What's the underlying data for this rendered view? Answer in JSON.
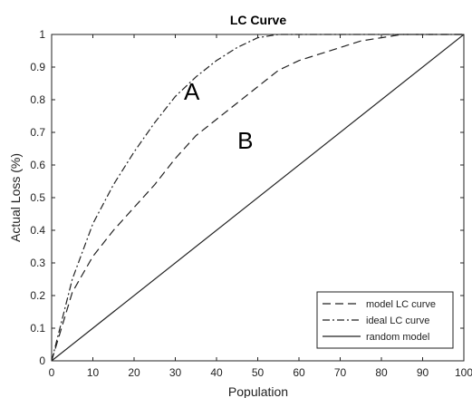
{
  "chart_data": {
    "type": "line",
    "title": "LC Curve",
    "xlabel": "Population",
    "ylabel": "Actual Loss (%)",
    "xlim": [
      0,
      100
    ],
    "ylim": [
      0,
      1
    ],
    "x_ticks": [
      0,
      10,
      20,
      30,
      40,
      50,
      60,
      70,
      80,
      90,
      100
    ],
    "y_ticks": [
      0,
      0.1,
      0.2,
      0.3,
      0.4,
      0.5,
      0.6,
      0.7,
      0.8,
      0.9,
      1
    ],
    "grid": false,
    "legend_position": "bottom-right",
    "series": [
      {
        "name": "model LC curve",
        "line_style": "dashed",
        "color": "#222222",
        "x": [
          0,
          5,
          10,
          15,
          20,
          25,
          30,
          35,
          40,
          45,
          50,
          55,
          60,
          65,
          70,
          75,
          80,
          85,
          90,
          95,
          100
        ],
        "y": [
          0,
          0.21,
          0.32,
          0.4,
          0.47,
          0.54,
          0.62,
          0.69,
          0.74,
          0.79,
          0.84,
          0.89,
          0.92,
          0.94,
          0.96,
          0.98,
          0.99,
          1.0,
          1.0,
          1.0,
          1.0
        ]
      },
      {
        "name": "ideal LC curve",
        "line_style": "dashdot",
        "color": "#222222",
        "x": [
          0,
          5,
          10,
          15,
          20,
          25,
          30,
          35,
          40,
          45,
          50,
          55,
          60,
          70,
          80,
          90,
          100
        ],
        "y": [
          0,
          0.25,
          0.42,
          0.54,
          0.64,
          0.73,
          0.81,
          0.87,
          0.92,
          0.96,
          0.99,
          1.0,
          1.0,
          1.0,
          1.0,
          1.0,
          1.0
        ]
      },
      {
        "name": "random model",
        "line_style": "solid",
        "color": "#222222",
        "x": [
          0,
          100
        ],
        "y": [
          0,
          1
        ]
      }
    ],
    "annotations": [
      {
        "text": "A",
        "x": 34,
        "y": 0.8
      },
      {
        "text": "B",
        "x": 47,
        "y": 0.65
      }
    ]
  }
}
